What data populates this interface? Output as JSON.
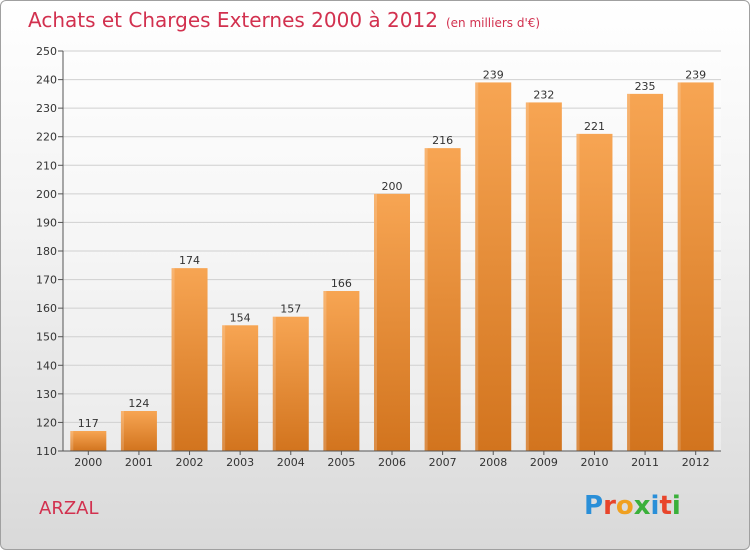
{
  "title": "Achats et Charges Externes 2000 à 2012",
  "subtitle": "(en milliers d'€)",
  "town": "ARZAL",
  "logo": {
    "letters": [
      "P",
      "r",
      "o",
      "x",
      "i",
      "t",
      "i"
    ],
    "colors": [
      "#2a8fd8",
      "#e8452b",
      "#f0a020",
      "#3ab03a",
      "#2a8fd8",
      "#e8452b",
      "#3ab03a"
    ]
  },
  "chart_data": {
    "type": "bar",
    "title": "Achats et Charges Externes 2000 à 2012",
    "subtitle": "(en milliers d'€)",
    "categories": [
      "2000",
      "2001",
      "2002",
      "2003",
      "2004",
      "2005",
      "2006",
      "2007",
      "2008",
      "2009",
      "2010",
      "2011",
      "2012"
    ],
    "values": [
      117,
      124,
      174,
      154,
      157,
      166,
      200,
      216,
      239,
      232,
      221,
      235,
      239
    ],
    "ylim": [
      110,
      250
    ],
    "yticks": [
      110,
      120,
      130,
      140,
      150,
      160,
      170,
      180,
      190,
      200,
      210,
      220,
      230,
      240,
      250
    ],
    "grid": true,
    "bar_color_top": "#f7a553",
    "bar_color_bottom": "#d2741e"
  }
}
